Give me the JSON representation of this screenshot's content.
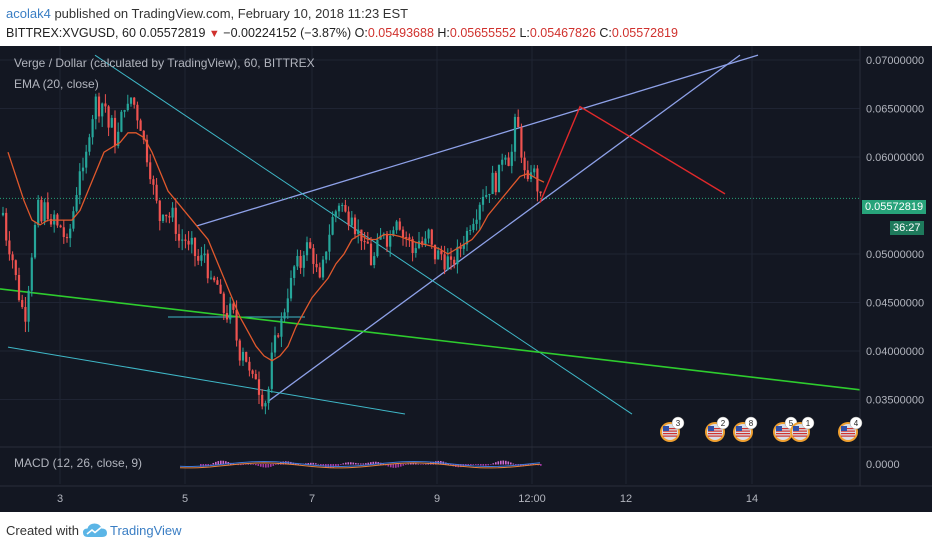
{
  "header": {
    "user": "acolak4",
    "published": "published on TradingView.com, February 10, 2018 11:23 EST",
    "symbol": "BITTREX:XVGUSD, 60",
    "last": "0.05572819",
    "change": "−0.00224152 (−3.87%)",
    "o_label": "O:",
    "o_value": "0.05493688",
    "h_label": "H:",
    "h_value": "0.05655552",
    "l_label": "L:",
    "l_value": "0.05467826",
    "c_label": "C:",
    "c_value": "0.05572819"
  },
  "legend": {
    "series_title": "Verge / Dollar (calculated by TradingView), 60, BITTREX",
    "ema": "EMA (20, close)",
    "macd": "MACD (12, 26, close, 9)"
  },
  "price_tag": {
    "price": "0.05572819",
    "countdown": "36:27"
  },
  "event_badges": [
    "3",
    "2",
    "8",
    "5",
    "1",
    "4"
  ],
  "footer": {
    "created_with": "Created with",
    "brand": "TradingView"
  },
  "colors": {
    "background": "#131722",
    "up": "#26a69a",
    "down": "#ef5350",
    "ema": "#e0582c",
    "trendline": "#8ea1e8",
    "channel": "#3fb8c8",
    "green_line": "#2ecc2e",
    "projection": "#e0292b",
    "price_tag": "#27a37a"
  },
  "chart_data": {
    "type": "candlestick",
    "title": "Verge / Dollar (calculated by TradingView), 60, BITTREX",
    "x_ticks": [
      "3",
      "5",
      "7",
      "9",
      "12:00",
      "12",
      "14"
    ],
    "y_ticks": [
      "0.07000000",
      "0.06500000",
      "0.06000000",
      "0.05000000",
      "0.04500000",
      "0.04000000",
      "0.03500000"
    ],
    "macd_ticks": [
      "0.0000"
    ],
    "ylim": [
      0.0335,
      0.072
    ],
    "candle_path": [
      [
        0,
        0.0535
      ],
      [
        4,
        0.0545
      ],
      [
        8,
        0.0495
      ],
      [
        10,
        0.051
      ],
      [
        16,
        0.0475
      ],
      [
        20,
        0.045
      ],
      [
        26,
        0.0435
      ],
      [
        30,
        0.0485
      ],
      [
        34,
        0.052
      ],
      [
        38,
        0.055
      ],
      [
        42,
        0.053
      ],
      [
        46,
        0.056
      ],
      [
        50,
        0.052
      ],
      [
        54,
        0.054
      ],
      [
        58,
        0.0525
      ],
      [
        62,
        0.053
      ],
      [
        66,
        0.0505
      ],
      [
        70,
        0.0525
      ],
      [
        76,
        0.056
      ],
      [
        80,
        0.059
      ],
      [
        84,
        0.058
      ],
      [
        88,
        0.062
      ],
      [
        92,
        0.064
      ],
      [
        96,
        0.066
      ],
      [
        100,
        0.0645
      ],
      [
        104,
        0.0665
      ],
      [
        108,
        0.063
      ],
      [
        112,
        0.0635
      ],
      [
        116,
        0.061
      ],
      [
        120,
        0.0635
      ],
      [
        124,
        0.0655
      ],
      [
        128,
        0.065
      ],
      [
        132,
        0.0665
      ],
      [
        136,
        0.0645
      ],
      [
        140,
        0.0635
      ],
      [
        144,
        0.0615
      ],
      [
        148,
        0.0595
      ],
      [
        152,
        0.0575
      ],
      [
        156,
        0.0555
      ],
      [
        160,
        0.0535
      ],
      [
        164,
        0.055
      ],
      [
        168,
        0.0535
      ],
      [
        172,
        0.0545
      ],
      [
        176,
        0.0525
      ],
      [
        180,
        0.051
      ],
      [
        184,
        0.052
      ],
      [
        188,
        0.0505
      ],
      [
        192,
        0.051
      ],
      [
        196,
        0.0495
      ],
      [
        200,
        0.049
      ],
      [
        204,
        0.0505
      ],
      [
        208,
        0.048
      ],
      [
        212,
        0.0465
      ],
      [
        216,
        0.0475
      ],
      [
        220,
        0.0455
      ],
      [
        224,
        0.044
      ],
      [
        228,
        0.0435
      ],
      [
        232,
        0.045
      ],
      [
        236,
        0.0415
      ],
      [
        240,
        0.0395
      ],
      [
        244,
        0.0405
      ],
      [
        248,
        0.038
      ],
      [
        252,
        0.037
      ],
      [
        256,
        0.0375
      ],
      [
        260,
        0.0355
      ],
      [
        264,
        0.0345
      ],
      [
        268,
        0.0355
      ],
      [
        272,
        0.0395
      ],
      [
        276,
        0.0415
      ],
      [
        280,
        0.0425
      ],
      [
        284,
        0.044
      ],
      [
        288,
        0.046
      ],
      [
        292,
        0.0475
      ],
      [
        296,
        0.0495
      ],
      [
        300,
        0.0485
      ],
      [
        304,
        0.0505
      ],
      [
        308,
        0.051
      ],
      [
        312,
        0.05
      ],
      [
        316,
        0.0485
      ],
      [
        320,
        0.047
      ],
      [
        324,
        0.0495
      ],
      [
        328,
        0.0515
      ],
      [
        332,
        0.0535
      ],
      [
        336,
        0.0545
      ],
      [
        340,
        0.0555
      ],
      [
        344,
        0.0545
      ],
      [
        348,
        0.0535
      ],
      [
        352,
        0.0545
      ],
      [
        356,
        0.052
      ],
      [
        360,
        0.0525
      ],
      [
        364,
        0.0505
      ],
      [
        368,
        0.051
      ],
      [
        372,
        0.0485
      ],
      [
        376,
        0.0505
      ],
      [
        380,
        0.0515
      ],
      [
        384,
        0.0525
      ],
      [
        388,
        0.051
      ],
      [
        392,
        0.0525
      ],
      [
        396,
        0.054
      ],
      [
        400,
        0.053
      ],
      [
        404,
        0.0515
      ],
      [
        408,
        0.052
      ],
      [
        412,
        0.05
      ],
      [
        416,
        0.051
      ],
      [
        420,
        0.0515
      ],
      [
        424,
        0.0505
      ],
      [
        428,
        0.0525
      ],
      [
        432,
        0.0505
      ],
      [
        436,
        0.0495
      ],
      [
        440,
        0.0505
      ],
      [
        444,
        0.049
      ],
      [
        448,
        0.0495
      ],
      [
        452,
        0.0485
      ],
      [
        456,
        0.05
      ],
      [
        460,
        0.0505
      ],
      [
        464,
        0.0515
      ],
      [
        468,
        0.0525
      ],
      [
        472,
        0.0535
      ],
      [
        476,
        0.054
      ],
      [
        480,
        0.0555
      ],
      [
        484,
        0.0565
      ],
      [
        488,
        0.056
      ],
      [
        492,
        0.058
      ],
      [
        496,
        0.057
      ],
      [
        500,
        0.059
      ],
      [
        504,
        0.061
      ],
      [
        508,
        0.0595
      ],
      [
        512,
        0.0605
      ],
      [
        516,
        0.0645
      ],
      [
        520,
        0.0615
      ],
      [
        524,
        0.0585
      ],
      [
        528,
        0.057
      ],
      [
        532,
        0.0595
      ],
      [
        536,
        0.0575
      ],
      [
        540,
        0.0555
      ],
      [
        544,
        0.0565
      ]
    ],
    "ema_path": [
      [
        8,
        0.0605
      ],
      [
        16,
        0.058
      ],
      [
        24,
        0.0555
      ],
      [
        32,
        0.0535
      ],
      [
        40,
        0.053
      ],
      [
        48,
        0.0535
      ],
      [
        56,
        0.0535
      ],
      [
        64,
        0.0535
      ],
      [
        72,
        0.0535
      ],
      [
        80,
        0.0545
      ],
      [
        88,
        0.0565
      ],
      [
        96,
        0.0585
      ],
      [
        104,
        0.0605
      ],
      [
        112,
        0.061
      ],
      [
        120,
        0.0615
      ],
      [
        128,
        0.0625
      ],
      [
        136,
        0.0625
      ],
      [
        144,
        0.062
      ],
      [
        152,
        0.0605
      ],
      [
        160,
        0.0585
      ],
      [
        168,
        0.0565
      ],
      [
        176,
        0.0555
      ],
      [
        184,
        0.0545
      ],
      [
        192,
        0.0535
      ],
      [
        200,
        0.0525
      ],
      [
        208,
        0.0515
      ],
      [
        216,
        0.0495
      ],
      [
        224,
        0.0475
      ],
      [
        232,
        0.0455
      ],
      [
        240,
        0.0435
      ],
      [
        248,
        0.042
      ],
      [
        256,
        0.0405
      ],
      [
        264,
        0.0395
      ],
      [
        272,
        0.039
      ],
      [
        280,
        0.0395
      ],
      [
        288,
        0.0405
      ],
      [
        296,
        0.0425
      ],
      [
        304,
        0.044
      ],
      [
        312,
        0.0455
      ],
      [
        320,
        0.0465
      ],
      [
        328,
        0.0475
      ],
      [
        336,
        0.049
      ],
      [
        344,
        0.05
      ],
      [
        352,
        0.0515
      ],
      [
        360,
        0.052
      ],
      [
        368,
        0.0515
      ],
      [
        376,
        0.0515
      ],
      [
        384,
        0.052
      ],
      [
        392,
        0.052
      ],
      [
        400,
        0.0518
      ],
      [
        408,
        0.0515
      ],
      [
        416,
        0.0512
      ],
      [
        424,
        0.051
      ],
      [
        432,
        0.0508
      ],
      [
        440,
        0.0505
      ],
      [
        448,
        0.05
      ],
      [
        456,
        0.0505
      ],
      [
        464,
        0.051
      ],
      [
        472,
        0.0515
      ],
      [
        480,
        0.0525
      ],
      [
        488,
        0.054
      ],
      [
        496,
        0.055
      ],
      [
        504,
        0.056
      ],
      [
        512,
        0.057
      ],
      [
        520,
        0.058
      ],
      [
        528,
        0.0583
      ],
      [
        536,
        0.0578
      ],
      [
        544,
        0.0574
      ]
    ],
    "trendlines": [
      {
        "name": "upper-channel",
        "from": [
          197,
          0.0529
        ],
        "to": [
          758,
          0.0705
        ]
      },
      {
        "name": "lower-channel",
        "from": [
          268,
          0.0348
        ],
        "to": [
          740,
          0.0705
        ]
      },
      {
        "name": "descending-channel-a",
        "from": [
          95,
          0.0705
        ],
        "to": [
          632,
          0.0335
        ]
      },
      {
        "name": "descending-channel-b",
        "from": [
          8,
          0.0404
        ],
        "to": [
          405,
          0.0335
        ]
      },
      {
        "name": "horizontal-segment",
        "from": [
          168,
          0.0435
        ],
        "to": [
          305,
          0.0435
        ]
      },
      {
        "name": "long-term-support",
        "from": [
          0,
          0.0464
        ],
        "to": [
          860,
          0.036
        ]
      }
    ],
    "projection": [
      [
        540,
        0.0553
      ],
      [
        580,
        0.0652
      ],
      [
        725,
        0.0562
      ]
    ]
  }
}
